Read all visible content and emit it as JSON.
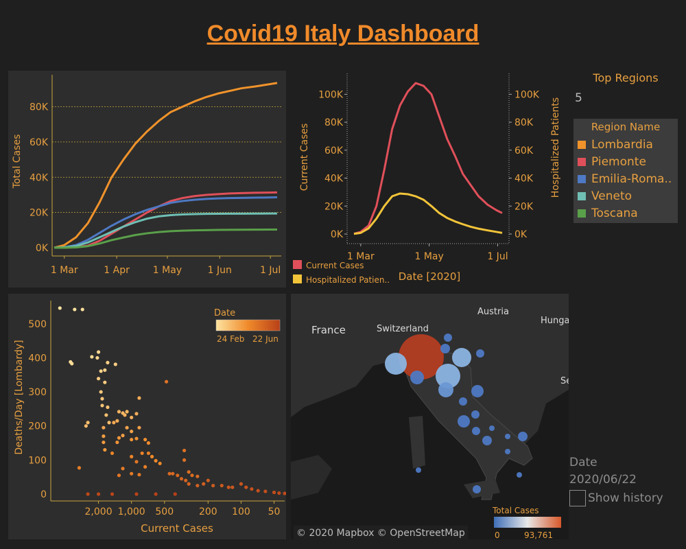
{
  "dashboard": {
    "title": "Covid19 Italy Dashboard"
  },
  "colors": {
    "lombardia": "#f0932b",
    "piemonte": "#e0505a",
    "emilia": "#4e79c4",
    "veneto": "#6fbfb4",
    "toscana": "#5aa04a",
    "current": "#e0505a",
    "hosp": "#f2c43a"
  },
  "regions_panel": {
    "title": "Top Regions",
    "value": "5",
    "legend_title": "Region Name",
    "items": [
      {
        "label": "Lombardia",
        "color": "#f0932b"
      },
      {
        "label": "Piemonte",
        "color": "#e0505a"
      },
      {
        "label": "Emilia-Roma..",
        "color": "#4e79c4"
      },
      {
        "label": "Veneto",
        "color": "#6fbfb4"
      },
      {
        "label": "Toscana",
        "color": "#5aa04a"
      }
    ]
  },
  "date_control": {
    "label": "Date",
    "value": "2020/06/22",
    "history_label": "Show history"
  },
  "map": {
    "labels": [
      "France",
      "Switzerland",
      "Austria",
      "Hunga",
      "Se"
    ],
    "attribution": "© 2020 Mapbox © OpenStreetMap",
    "legend_title": "Total Cases",
    "legend_min": "0",
    "legend_max": "93,761"
  },
  "chart_data": [
    {
      "type": "line",
      "title": "",
      "xlabel": "",
      "ylabel": "Total Cases",
      "x_ticks": [
        "1 Mar",
        "1 Apr",
        "1 May",
        "1 Jun",
        "1 Jul"
      ],
      "y_ticks": [
        "0K",
        "20K",
        "40K",
        "60K",
        "80K"
      ],
      "ylim": [
        0,
        95000
      ],
      "x_dates": [
        "2020-02-24",
        "2020-03-01",
        "2020-03-08",
        "2020-03-15",
        "2020-03-22",
        "2020-03-29",
        "2020-04-05",
        "2020-04-12",
        "2020-04-19",
        "2020-04-26",
        "2020-05-03",
        "2020-05-10",
        "2020-05-17",
        "2020-05-24",
        "2020-05-31",
        "2020-06-07",
        "2020-06-14",
        "2020-06-22",
        "2020-06-30",
        "2020-07-05"
      ],
      "series": [
        {
          "name": "Lombardia",
          "values": [
            0,
            1500,
            6000,
            14000,
            26000,
            40000,
            50000,
            59000,
            66000,
            72000,
            77000,
            80000,
            83000,
            85500,
            87500,
            89000,
            90500,
            91500,
            92700,
            93500
          ]
        },
        {
          "name": "Piemonte",
          "values": [
            0,
            50,
            300,
            1200,
            4000,
            8000,
            12000,
            16000,
            20000,
            23500,
            26500,
            28200,
            29300,
            30000,
            30400,
            30800,
            31000,
            31200,
            31300,
            31400
          ]
        },
        {
          "name": "Emilia-Roma..",
          "values": [
            0,
            300,
            1500,
            4500,
            8500,
            12500,
            16000,
            19000,
            21500,
            23500,
            25500,
            26500,
            27200,
            27700,
            28000,
            28200,
            28300,
            28400,
            28500,
            28600
          ]
        },
        {
          "name": "Veneto",
          "values": [
            0,
            250,
            1000,
            3000,
            6000,
            9000,
            12000,
            14500,
            16500,
            17800,
            18500,
            18900,
            19100,
            19200,
            19250,
            19300,
            19300,
            19350,
            19400,
            19400
          ]
        },
        {
          "name": "Toscana",
          "values": [
            0,
            20,
            200,
            900,
            2400,
            4300,
            5800,
            7200,
            8200,
            8900,
            9400,
            9700,
            9900,
            10000,
            10100,
            10150,
            10200,
            10250,
            10300,
            10300
          ]
        }
      ]
    },
    {
      "type": "line",
      "title": "",
      "xlabel": "Date [2020]",
      "ylabel": "Current Cases",
      "ylabel_right": "Hospitalized Patients",
      "x_ticks": [
        "1 Mar",
        "1 May",
        "1 Jul"
      ],
      "y_ticks": [
        "0K",
        "20K",
        "40K",
        "60K",
        "80K",
        "100K"
      ],
      "ylim": [
        0,
        110000
      ],
      "x_dates": [
        "2020-02-24",
        "2020-03-01",
        "2020-03-08",
        "2020-03-15",
        "2020-03-22",
        "2020-03-29",
        "2020-04-05",
        "2020-04-12",
        "2020-04-19",
        "2020-04-26",
        "2020-05-03",
        "2020-05-10",
        "2020-05-17",
        "2020-05-24",
        "2020-05-31",
        "2020-06-07",
        "2020-06-14",
        "2020-06-22",
        "2020-06-30",
        "2020-07-05"
      ],
      "series": [
        {
          "name": "Current Cases",
          "values": [
            200,
            1500,
            6000,
            20000,
            46000,
            75000,
            92000,
            102000,
            108000,
            106000,
            100000,
            84000,
            68000,
            56000,
            43000,
            35000,
            27000,
            21000,
            17000,
            15000
          ]
        },
        {
          "name": "Hospitalized Patien..",
          "values": [
            100,
            800,
            4000,
            11000,
            20000,
            27000,
            29000,
            28500,
            27000,
            24500,
            20000,
            15000,
            11500,
            9000,
            7000,
            5200,
            3800,
            2600,
            1500,
            800
          ]
        }
      ]
    },
    {
      "type": "scatter",
      "title": "",
      "xlabel": "Current Cases",
      "ylabel": "Deaths/Day [Lombardy]",
      "x_ticks": [
        "2,000",
        "1,000",
        "500",
        "200",
        "100",
        "50"
      ],
      "y_ticks": [
        "0",
        "100",
        "200",
        "300",
        "400",
        "500"
      ],
      "legend_title": "Date",
      "legend_min": "24 Feb",
      "legend_max": "22 Jun",
      "points": [
        [
          4500,
          546
        ],
        [
          3300,
          542
        ],
        [
          2800,
          542
        ],
        [
          3600,
          388
        ],
        [
          3500,
          383
        ],
        [
          2300,
          403
        ],
        [
          2000,
          417
        ],
        [
          2050,
          400
        ],
        [
          1900,
          361
        ],
        [
          1750,
          364
        ],
        [
          1650,
          386
        ],
        [
          1400,
          381
        ],
        [
          2000,
          339
        ],
        [
          1750,
          328
        ],
        [
          1900,
          300
        ],
        [
          1850,
          280
        ],
        [
          1850,
          260
        ],
        [
          1650,
          255
        ],
        [
          1700,
          232
        ],
        [
          1600,
          210
        ],
        [
          2500,
          210
        ],
        [
          2600,
          200
        ],
        [
          1200,
          238
        ],
        [
          1100,
          242
        ],
        [
          1300,
          242
        ],
        [
          1150,
          232
        ],
        [
          1000,
          225
        ],
        [
          900,
          236
        ],
        [
          850,
          282
        ],
        [
          1350,
          215
        ],
        [
          1450,
          210
        ],
        [
          1800,
          195
        ],
        [
          1100,
          195
        ],
        [
          1000,
          184
        ],
        [
          850,
          195
        ],
        [
          1200,
          172
        ],
        [
          1800,
          170
        ],
        [
          1800,
          152
        ],
        [
          1750,
          130
        ],
        [
          1300,
          165
        ],
        [
          1350,
          152
        ],
        [
          1000,
          160
        ],
        [
          900,
          163
        ],
        [
          750,
          160
        ],
        [
          700,
          150
        ],
        [
          650,
          110
        ],
        [
          600,
          98
        ],
        [
          550,
          90
        ],
        [
          1500,
          120
        ],
        [
          1000,
          110
        ],
        [
          800,
          120
        ],
        [
          700,
          120
        ],
        [
          750,
          80
        ],
        [
          3000,
          77
        ],
        [
          1200,
          75
        ],
        [
          1000,
          60
        ],
        [
          850,
          57
        ],
        [
          1300,
          55
        ],
        [
          900,
          95
        ],
        [
          480,
          330
        ],
        [
          330,
          128
        ],
        [
          330,
          100
        ],
        [
          300,
          65
        ],
        [
          280,
          55
        ],
        [
          250,
          52
        ],
        [
          450,
          60
        ],
        [
          420,
          60
        ],
        [
          380,
          55
        ],
        [
          350,
          45
        ],
        [
          320,
          40
        ],
        [
          300,
          30
        ],
        [
          250,
          25
        ],
        [
          220,
          30
        ],
        [
          200,
          40
        ],
        [
          180,
          25
        ],
        [
          150,
          25
        ],
        [
          130,
          20
        ],
        [
          120,
          20
        ],
        [
          100,
          30
        ],
        [
          90,
          20
        ],
        [
          80,
          15
        ],
        [
          70,
          10
        ],
        [
          60,
          8
        ],
        [
          50,
          5
        ],
        [
          45,
          3
        ],
        [
          40,
          2
        ],
        [
          2500,
          0
        ],
        [
          2000,
          0
        ],
        [
          1500,
          0
        ],
        [
          900,
          0
        ],
        [
          600,
          0
        ],
        [
          400,
          0
        ]
      ]
    }
  ]
}
